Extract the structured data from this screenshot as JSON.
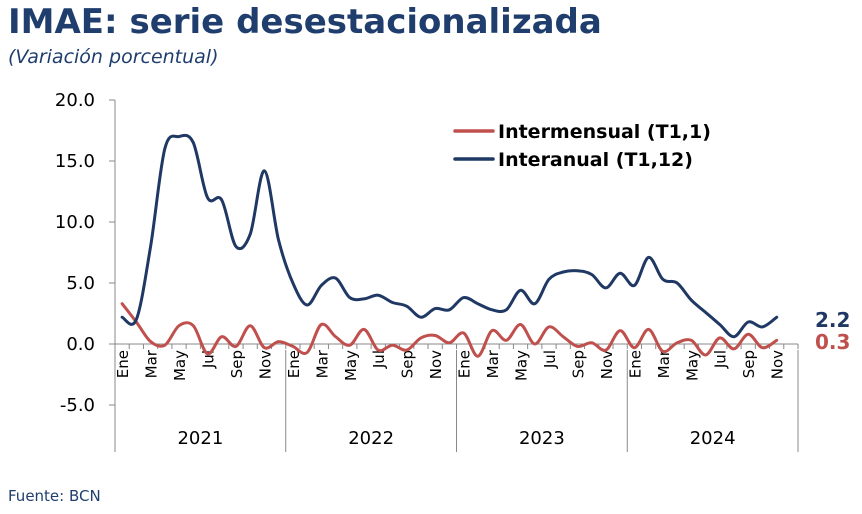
{
  "header": {
    "title": "IMAE: serie desestacionalizada",
    "subtitle": "(Variación porcentual)",
    "source": "Fuente: BCN"
  },
  "chart_data": {
    "type": "line",
    "ylim": [
      -5,
      20
    ],
    "yticks": [
      -5,
      0,
      5,
      10,
      15,
      20
    ],
    "ytick_labels": [
      "-5.0",
      "0.0",
      "5.0",
      "10.0",
      "15.0",
      "20.0"
    ],
    "months_shown": [
      "Ene",
      "Mar",
      "May",
      "Jul",
      "Sep",
      "Nov",
      "Ene",
      "Mar",
      "May",
      "Jul",
      "Sep",
      "Nov",
      "Ene",
      "Mar",
      "May",
      "Jul",
      "Sep",
      "Nov",
      "Ene",
      "Mar",
      "May",
      "Jul",
      "Sep",
      "Nov"
    ],
    "years": [
      "2021",
      "2022",
      "2023",
      "2024"
    ],
    "legend_position": "top-right",
    "colors": {
      "intermensual": "#c0504d",
      "interanual": "#1f3864"
    },
    "series": [
      {
        "name": "Intermensual (T1,1)",
        "key": "intermensual",
        "values": [
          3.3,
          1.8,
          0.2,
          -0.1,
          1.5,
          1.5,
          -0.8,
          0.6,
          -0.2,
          1.5,
          -0.3,
          0.2,
          -0.2,
          -0.7,
          1.6,
          0.6,
          -0.1,
          1.2,
          -0.5,
          -0.1,
          -0.5,
          0.5,
          0.7,
          0.1,
          0.9,
          -1.0,
          1.1,
          0.3,
          1.6,
          0.0,
          1.4,
          0.6,
          -0.2,
          0.1,
          -0.5,
          1.1,
          -0.3,
          1.2,
          -0.6,
          0.1,
          0.3,
          -0.9,
          0.5,
          -0.4,
          0.8,
          -0.3,
          0.3
        ]
      },
      {
        "name": "Interanual (T1,12)",
        "key": "interanual",
        "values": [
          2.2,
          2.0,
          8.0,
          16.0,
          17.0,
          16.5,
          12.0,
          11.8,
          8.0,
          9.0,
          14.2,
          8.5,
          5.0,
          3.2,
          4.8,
          5.4,
          3.8,
          3.7,
          4.0,
          3.4,
          3.1,
          2.2,
          2.9,
          2.8,
          3.8,
          3.3,
          2.8,
          2.8,
          4.4,
          3.3,
          5.3,
          5.9,
          6.0,
          5.7,
          4.6,
          5.8,
          4.8,
          7.1,
          5.3,
          5.0,
          3.6,
          2.6,
          1.6,
          0.6,
          1.8,
          1.4,
          2.2
        ]
      }
    ],
    "end_labels": {
      "interanual": "2.2",
      "intermensual": "0.3"
    }
  }
}
